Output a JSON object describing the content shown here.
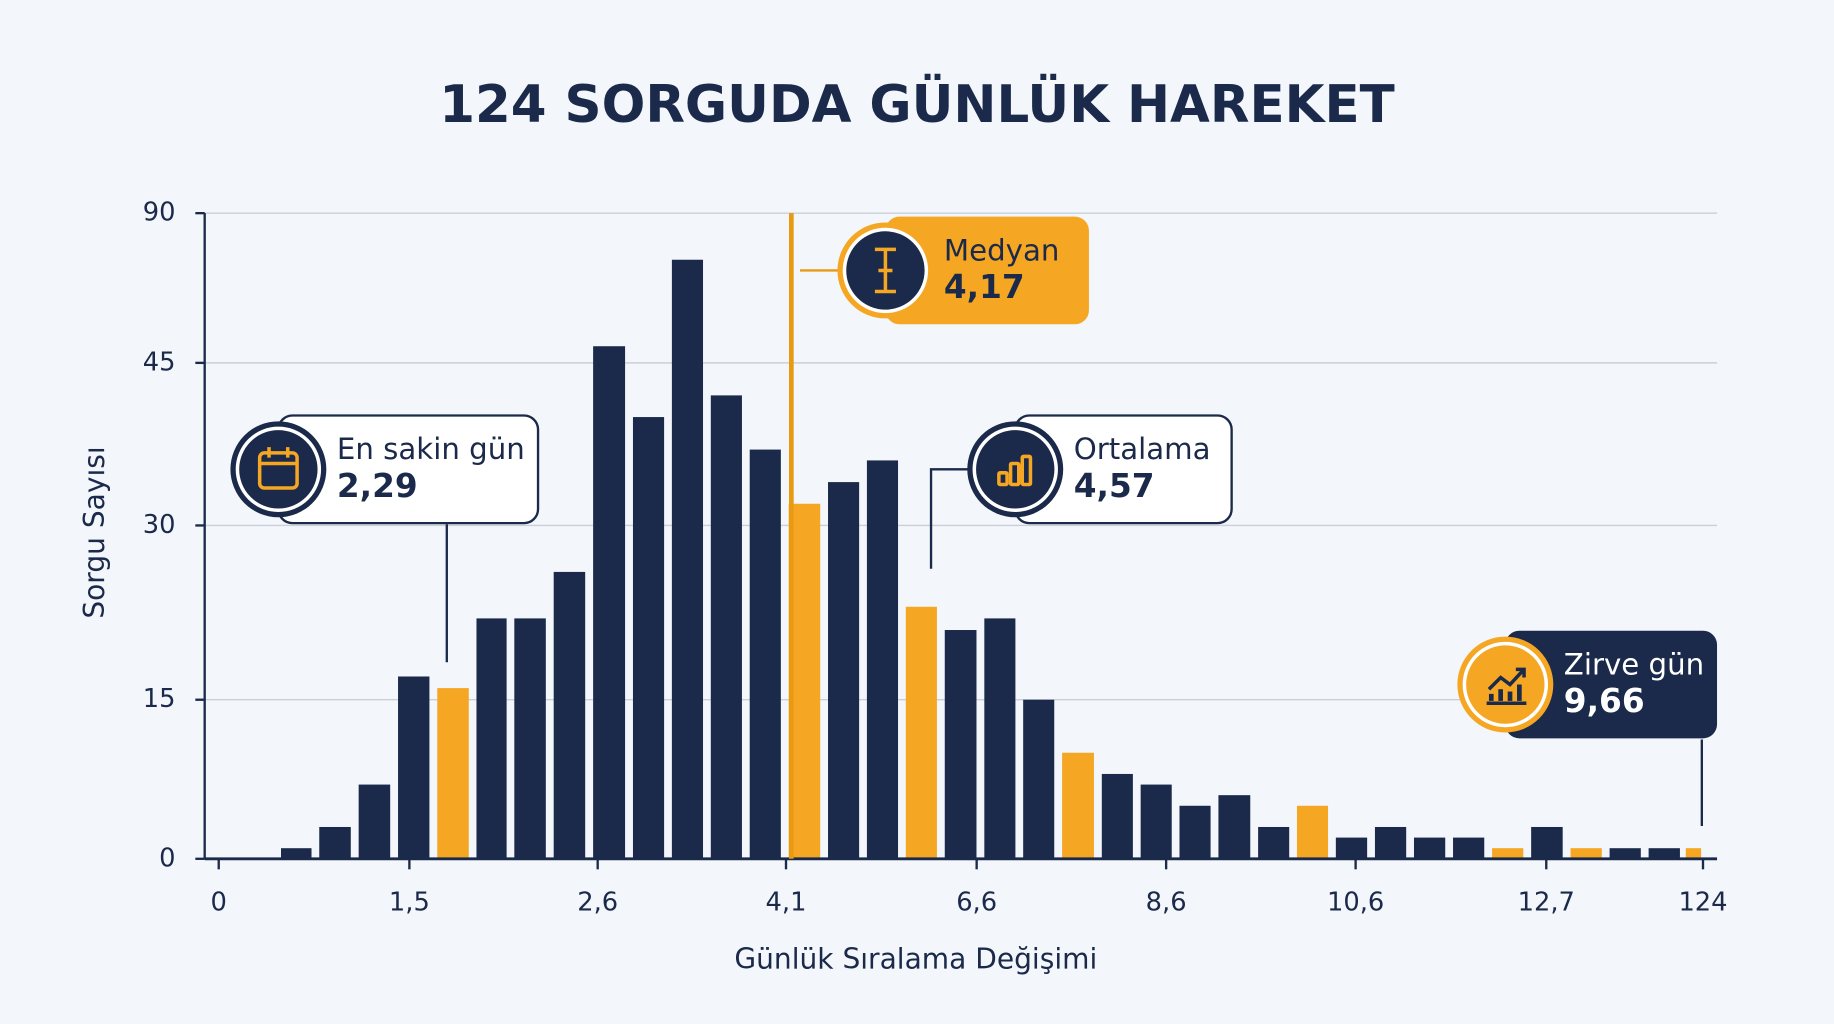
{
  "chart_data": {
    "type": "histogram",
    "title": "124 SORGUDA GÜNLÜK HAREKET",
    "x_label": "Günlük Sıralama Değişimi",
    "y_label": "Sorgu Sayısı",
    "bins": [
      0.46,
      0.76,
      1.07,
      1.38,
      1.64,
      1.87,
      2.09,
      2.32,
      2.55,
      2.85,
      3.16,
      3.47,
      3.78,
      4.09,
      4.6,
      5.11,
      5.62,
      6.13,
      6.64,
      7.05,
      7.46,
      7.88,
      8.29,
      8.7,
      9.11,
      9.53,
      9.94,
      10.35,
      10.77,
      11.2,
      11.63,
      12.06,
      12.49,
      27.15,
      54.9,
      82.6,
      110.4,
      124
    ],
    "values": [
      1,
      3,
      7,
      17,
      16,
      22,
      22,
      26,
      50,
      40,
      76,
      42,
      37,
      32,
      34,
      36,
      23,
      21,
      22,
      15,
      10,
      8,
      7,
      5,
      6,
      3,
      5,
      2,
      3,
      2,
      2,
      1,
      3,
      1,
      1,
      1,
      1
    ],
    "colors": [
      "#1b2a4a",
      "#1b2a4a",
      "#1b2a4a",
      "#1b2a4a",
      "#f5a623",
      "#1b2a4a",
      "#1b2a4a",
      "#1b2a4a",
      "#1b2a4a",
      "#1b2a4a",
      "#1b2a4a",
      "#1b2a4a",
      "#1b2a4a",
      "#f5a623",
      "#1b2a4a",
      "#1b2a4a",
      "#f5a623",
      "#1b2a4a",
      "#1b2a4a",
      "#1b2a4a",
      "#f5a623",
      "#1b2a4a",
      "#1b2a4a",
      "#1b2a4a",
      "#1b2a4a",
      "#1b2a4a",
      "#f5a623",
      "#1b2a4a",
      "#1b2a4a",
      "#1b2a4a",
      "#1b2a4a",
      "#f5a623",
      "#1b2a4a",
      "#f5a623",
      "#1b2a4a",
      "#1b2a4a",
      "#f5a623"
    ],
    "xlim": [
      0,
      124
    ],
    "xticks": [
      0,
      {
        "value": 1.5,
        "label": "1,5"
      },
      {
        "value": 2.6,
        "label": "2,6"
      },
      {
        "value": 4.1,
        "label": "4,1"
      },
      {
        "value": 6.6,
        "label": "6,6"
      },
      {
        "value": 8.6,
        "label": "8,6"
      },
      {
        "value": 10.6,
        "label": "10,6"
      },
      {
        "value": 12.7,
        "label": "12,7"
      },
      124
    ],
    "ylim": [
      0,
      90
    ],
    "yticks": [
      0,
      15,
      30,
      45,
      90
    ],
    "grid": true,
    "median": 4.17,
    "median_color": "#e89a12",
    "callouts": [
      {
        "label": "En sakin gün",
        "value": "2,29"
      },
      {
        "label": "Medyan",
        "value": "4,17"
      },
      {
        "label": "Ortalama",
        "value": "4,57"
      },
      {
        "label": "Zirve gün",
        "value": "9,66"
      }
    ]
  }
}
